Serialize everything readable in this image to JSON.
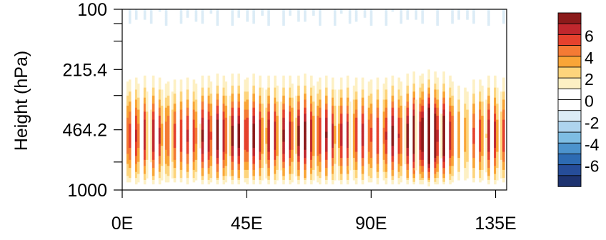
{
  "chart_data": {
    "type": "heatmap",
    "title": "",
    "xlabel": "",
    "ylabel": "Height (hPa)",
    "x_range": [
      0,
      139
    ],
    "y_range": [
      1000,
      100
    ],
    "y_scale": "log",
    "x_ticks": [
      {
        "value": 0,
        "label": "0E"
      },
      {
        "value": 45,
        "label": "45E"
      },
      {
        "value": 90,
        "label": "90E"
      },
      {
        "value": 135,
        "label": "135E"
      }
    ],
    "y_ticks": [
      {
        "value": 100,
        "label": "100"
      },
      {
        "value": 215.4,
        "label": "215.4"
      },
      {
        "value": 464.2,
        "label": "464.2"
      },
      {
        "value": 1000,
        "label": "1000"
      }
    ],
    "y_minor_ticks": [
      120,
      150,
      300,
      700
    ],
    "colorbar": {
      "labels": [
        "6",
        "4",
        "2",
        "0",
        "-2",
        "-4",
        "-6"
      ],
      "levels": [
        6,
        4,
        2,
        0,
        -2,
        -4,
        -6
      ],
      "colors": [
        "#8b1a1a",
        "#c0272d",
        "#e5412d",
        "#f47a34",
        "#f9a537",
        "#fdd47c",
        "#fdf0c4",
        "#ffffff",
        "#ffffff",
        "#dcecf6",
        "#aed4ee",
        "#7ebde3",
        "#4c93cd",
        "#2d6bb3",
        "#264d99",
        "#1e3370"
      ]
    },
    "grid": false,
    "legend": "right"
  }
}
